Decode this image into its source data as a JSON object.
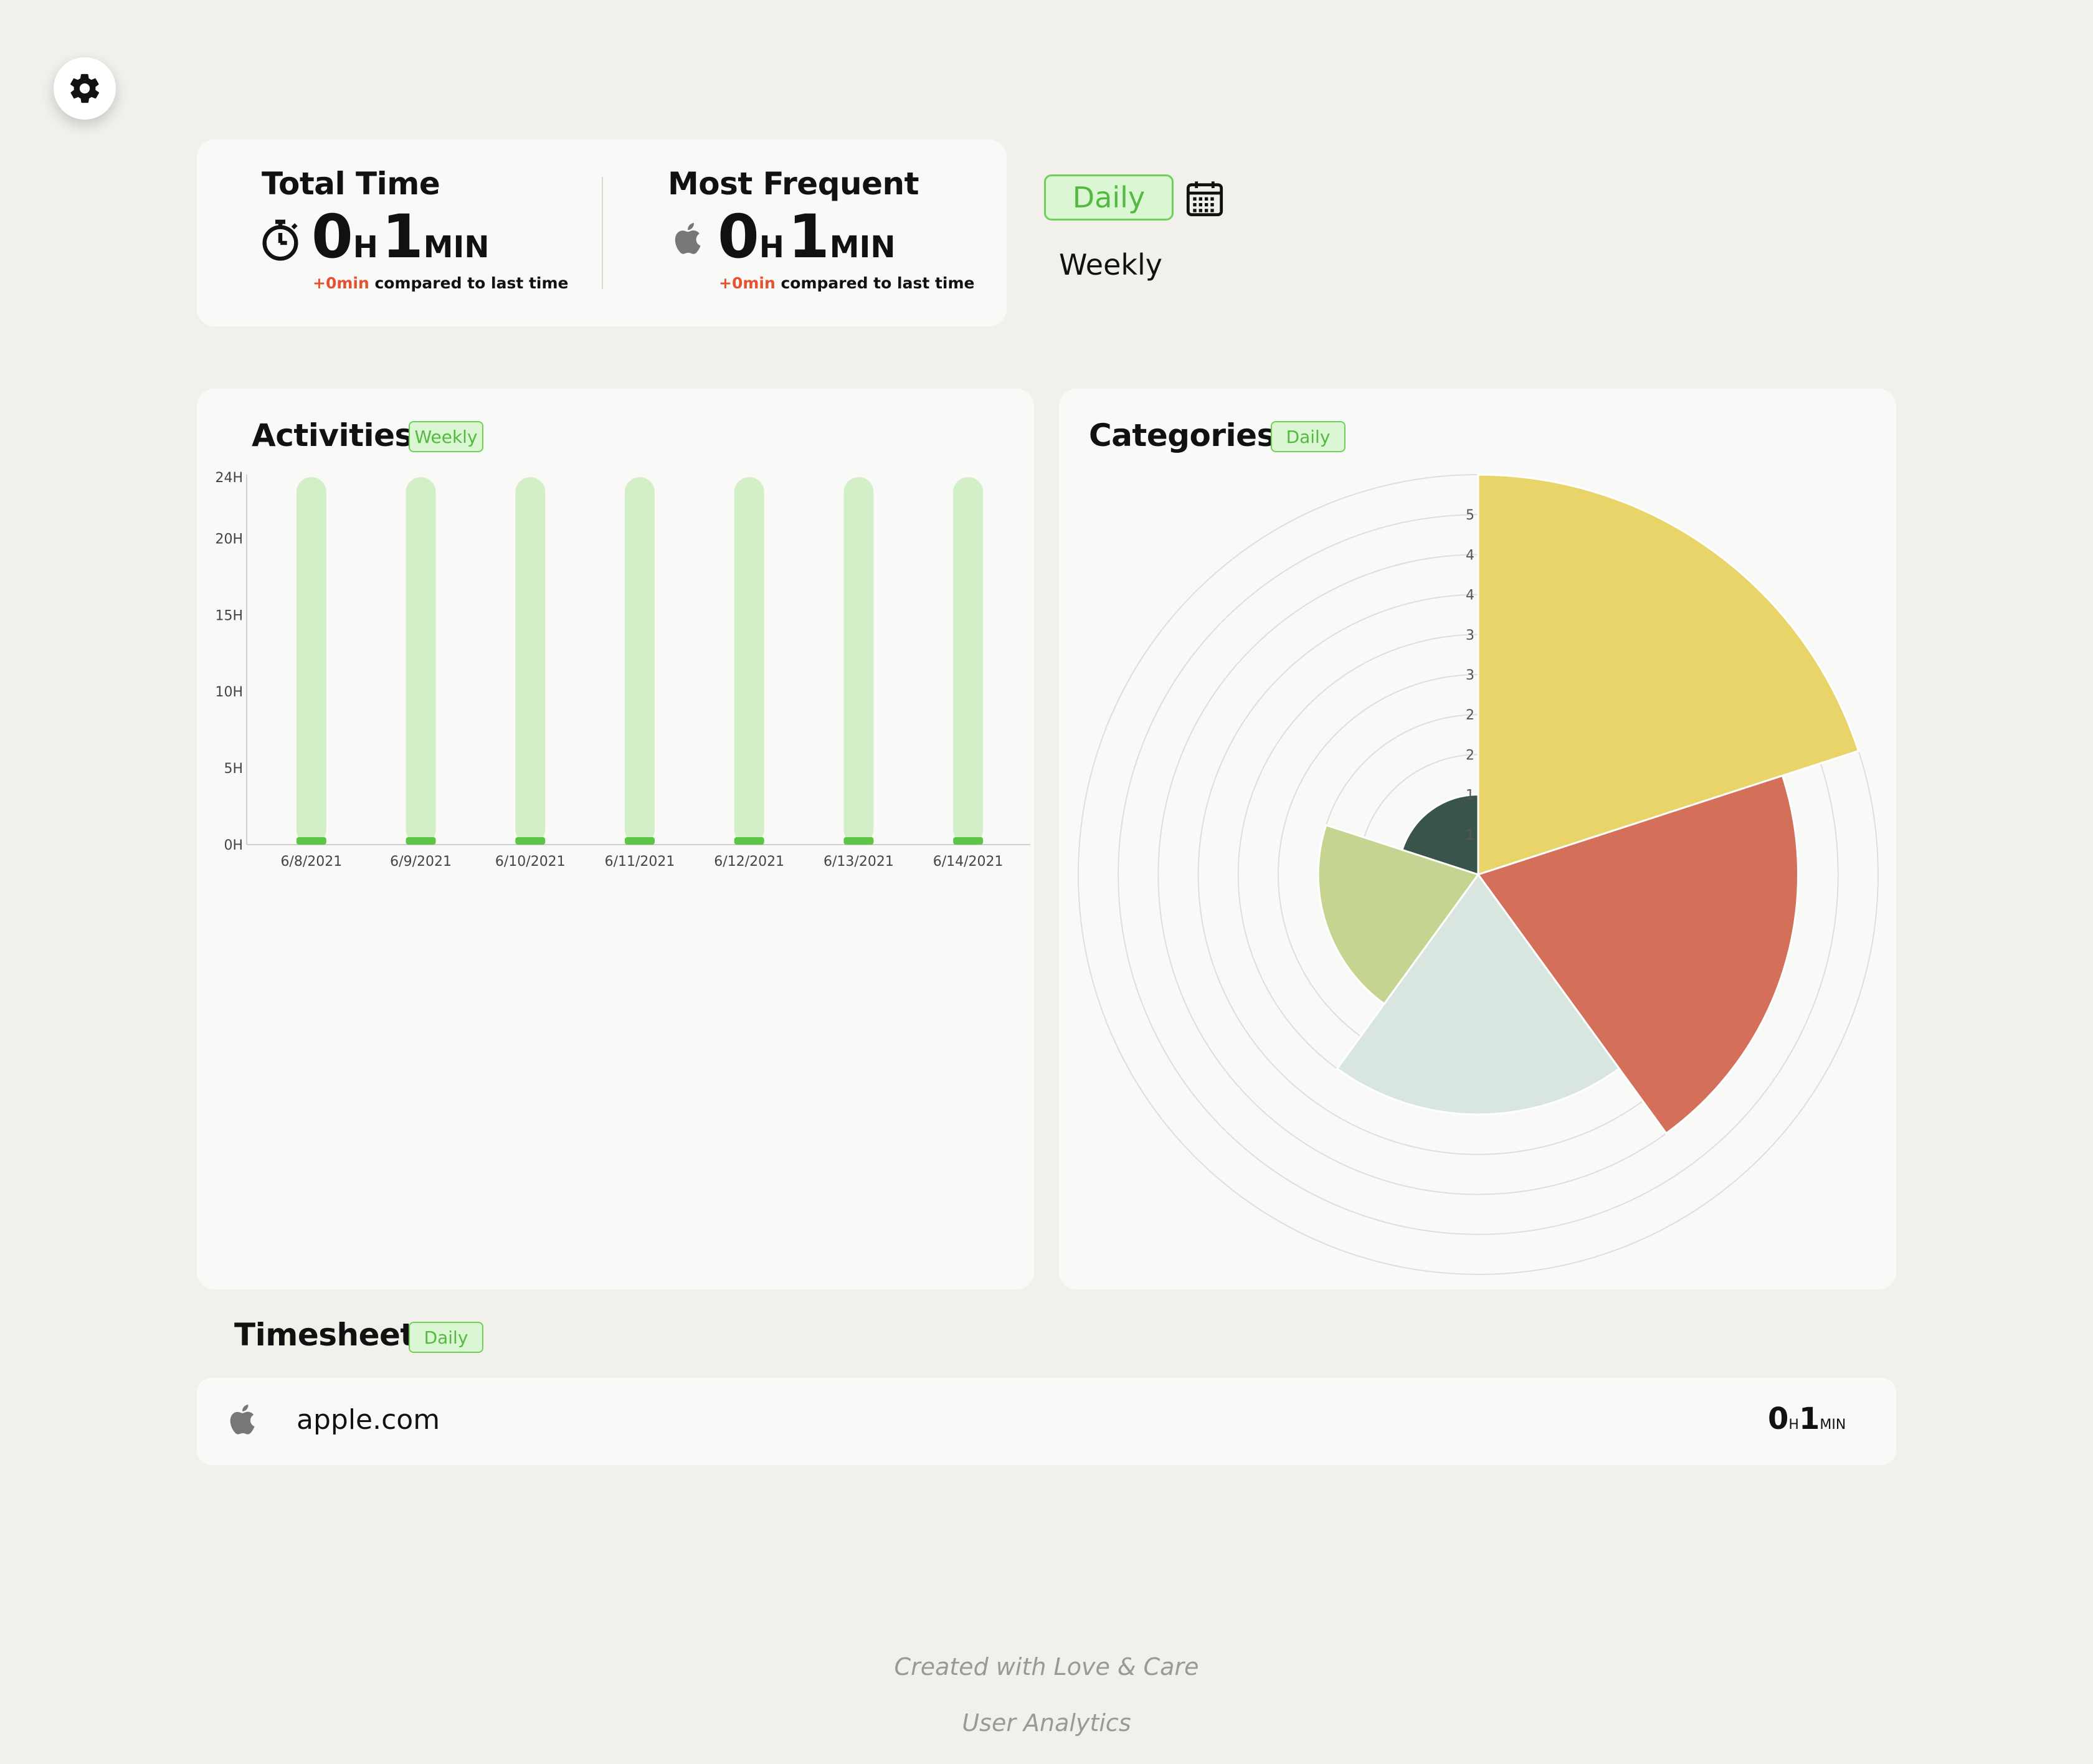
{
  "settings": {
    "icon": "gear-icon"
  },
  "summary": {
    "total": {
      "title": "Total Time",
      "icon": "stopwatch-icon",
      "hours": "0",
      "h_unit": "H",
      "minutes": "1",
      "m_unit": "MIN",
      "delta": "+0min",
      "compare_text": "compared to last time"
    },
    "frequent": {
      "title": "Most Frequent",
      "icon": "apple-icon",
      "hours": "0",
      "h_unit": "H",
      "minutes": "1",
      "m_unit": "MIN",
      "delta": "+0min",
      "compare_text": "compared to last time"
    }
  },
  "period": {
    "daily": "Daily",
    "weekly": "Weekly",
    "calendar_icon": "calendar-icon",
    "active": "Daily"
  },
  "activities": {
    "title": "Activities",
    "badge": "Weekly",
    "chart_data": {
      "type": "bar",
      "categories": [
        "6/8/2021",
        "6/9/2021",
        "6/10/2021",
        "6/11/2021",
        "6/12/2021",
        "6/13/2021",
        "6/14/2021"
      ],
      "series": [
        {
          "values": [
            0.02,
            0.02,
            0.02,
            0.02,
            0.02,
            0.02,
            0.02
          ]
        }
      ],
      "background_bar_value": 24,
      "ylim": [
        0,
        24
      ],
      "yticks": [
        {
          "value": 0,
          "label": "0H"
        },
        {
          "value": 5,
          "label": "5H"
        },
        {
          "value": 10,
          "label": "10H"
        },
        {
          "value": 15,
          "label": "15H"
        },
        {
          "value": 20,
          "label": "20H"
        },
        {
          "value": 24,
          "label": "24H"
        }
      ],
      "colors": {
        "bar": "#5dc446",
        "background_bar": "#d2efc8"
      }
    }
  },
  "categories": {
    "title": "Categories",
    "badge": "Daily",
    "chart_data": {
      "type": "polar-area",
      "rmax": 5,
      "ring_labels": [
        "1",
        "1",
        "2",
        "2",
        "3",
        "3",
        "4",
        "4",
        "5"
      ],
      "sectors": [
        {
          "value": 5.0,
          "color": "#e9d46a"
        },
        {
          "value": 4.0,
          "color": "#d4705a"
        },
        {
          "value": 3.0,
          "color": "#d9e6df"
        },
        {
          "value": 2.0,
          "color": "#c5d491"
        },
        {
          "value": 1.0,
          "color": "#39544c"
        }
      ]
    }
  },
  "timesheet": {
    "title": "Timesheet",
    "badge": "Daily",
    "rows": [
      {
        "icon": "apple-icon",
        "site": "apple.com",
        "hours": "0",
        "h_unit": "H",
        "minutes": "1",
        "m_unit": "MIN"
      }
    ]
  },
  "footer": {
    "line1": "Created with Love & Care",
    "line2": "User Analytics"
  }
}
